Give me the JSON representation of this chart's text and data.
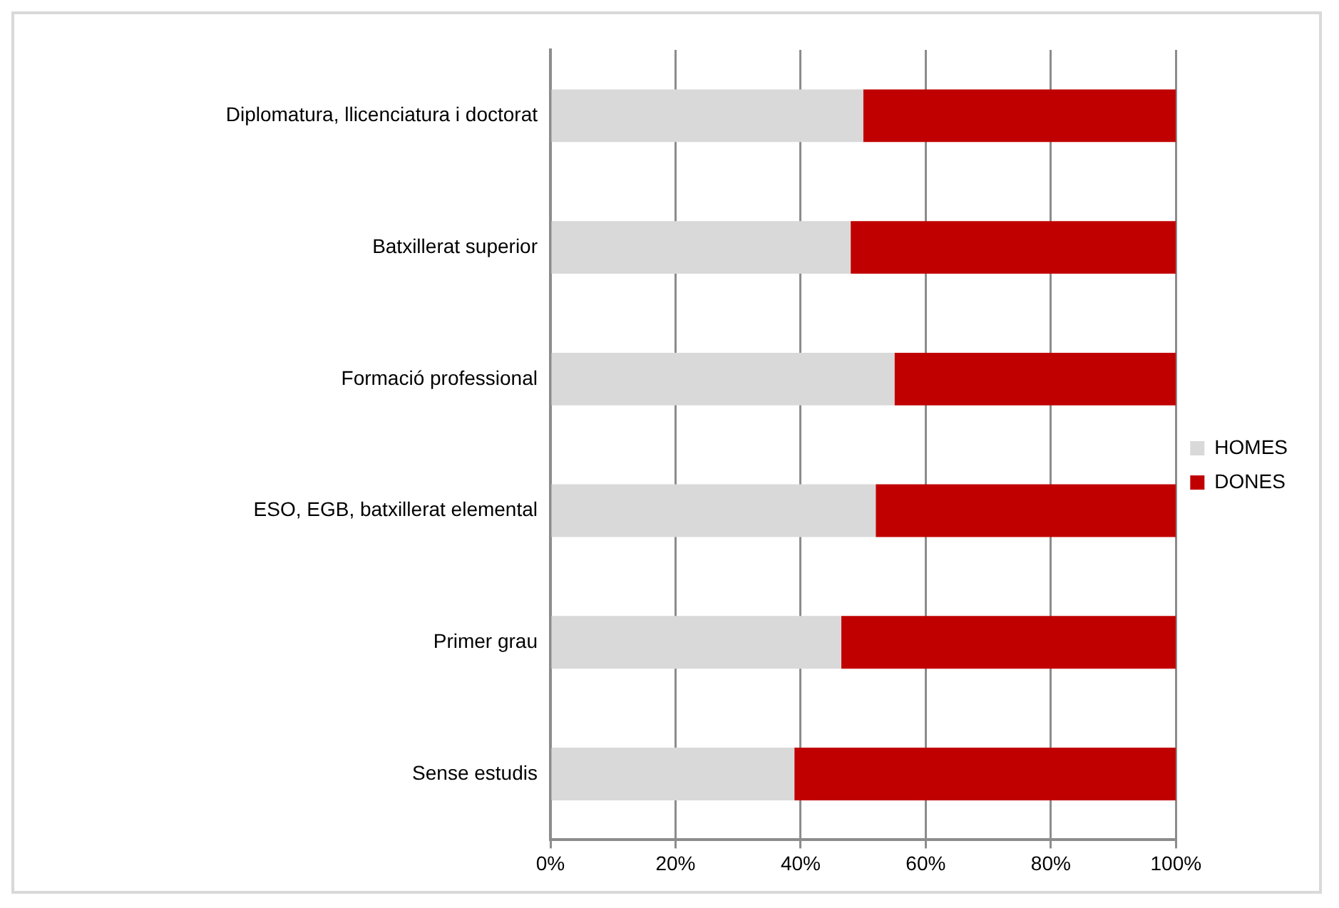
{
  "chart_data": {
    "type": "bar",
    "orientation": "horizontal",
    "stacked": true,
    "categories": [
      "Diplomatura, llicenciatura i doctorat",
      "Batxillerat superior",
      "Formació professional",
      "ESO, EGB, batxillerat elemental",
      "Primer grau",
      "Sense estudis"
    ],
    "series": [
      {
        "name": "HOMES",
        "color": "#d9d9d9",
        "values": [
          50,
          48,
          55,
          52,
          46.5,
          39
        ]
      },
      {
        "name": "DONES",
        "color": "#c00000",
        "values": [
          50,
          52,
          45,
          48,
          53.5,
          61
        ]
      }
    ],
    "xlim": [
      0,
      100
    ],
    "xticks": [
      {
        "value": 0,
        "label": "0%"
      },
      {
        "value": 20,
        "label": "20%"
      },
      {
        "value": 40,
        "label": "40%"
      },
      {
        "value": 60,
        "label": "60%"
      },
      {
        "value": 80,
        "label": "80%"
      },
      {
        "value": 100,
        "label": "100%"
      }
    ],
    "grid": "x",
    "legend": "right"
  }
}
